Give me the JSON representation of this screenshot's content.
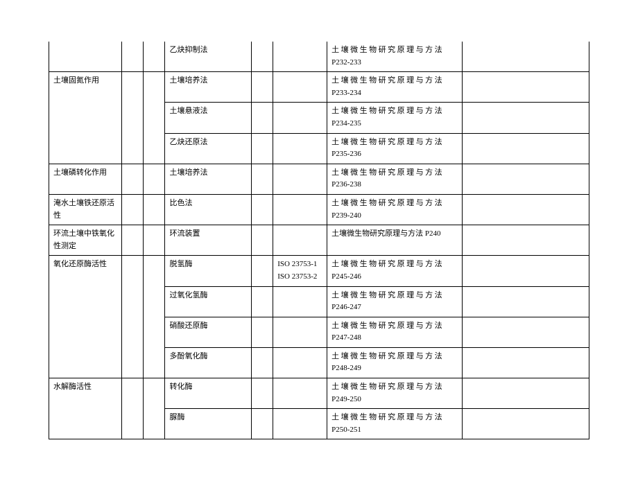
{
  "table": {
    "ref_book": "土壤微生物研究原理与方法",
    "ref_book_nospace": "土壤微生物研究原理与方法 P240",
    "rows": [
      {
        "c1": "",
        "c4": "乙炔抑制法",
        "c6": "",
        "page": "P232-233",
        "c1_notop": true,
        "spaced": true
      },
      {
        "c1": "土壤固氮作用",
        "c4": "土壤培养法",
        "c6": "",
        "page": "P233-234",
        "rowspan": 3,
        "spaced": true
      },
      {
        "c4": "土壤悬液法",
        "c6": "",
        "page": "P234-235",
        "spaced": true
      },
      {
        "c4": "乙炔还原法",
        "c6": "",
        "page": "P235-236",
        "spaced": true
      },
      {
        "c1": "土壤磷转化作用",
        "c4": "土壤培养法",
        "c6": "",
        "page": "P236-238",
        "rowspan": 1,
        "spaced": true
      },
      {
        "c1": "淹水土壤铁还原活性",
        "c4": "比色法",
        "c6": "",
        "page": "P239-240",
        "rowspan": 1,
        "spaced": true
      },
      {
        "c1": "环流土壤中铁氧化性测定",
        "c4": "环流装置",
        "c6": "",
        "page_full": "土壤微生物研究原理与方法 P240",
        "rowspan": 1,
        "spaced": false
      },
      {
        "c1": "氧化还原酶活性",
        "c4": "脱氢酶",
        "c6": "ISO 23753-1 ISO 23753-2",
        "page": "P245-246",
        "rowspan": 4,
        "spaced": true
      },
      {
        "c4": "过氧化氢酶",
        "c6": "",
        "page": "P246-247",
        "spaced": true
      },
      {
        "c4": "硝酸还原酶",
        "c6": "",
        "page": "P247-248",
        "spaced": true
      },
      {
        "c4": "多酚氧化酶",
        "c6": "",
        "page": "P248-249",
        "spaced": true
      },
      {
        "c1": "水解酶活性",
        "c4": "转化酶",
        "c6": "",
        "page": "P249-250",
        "rowspan": 2,
        "spaced": true
      },
      {
        "c4": "脲酶",
        "c6": "",
        "page": "P250-251",
        "spaced": true
      }
    ]
  }
}
